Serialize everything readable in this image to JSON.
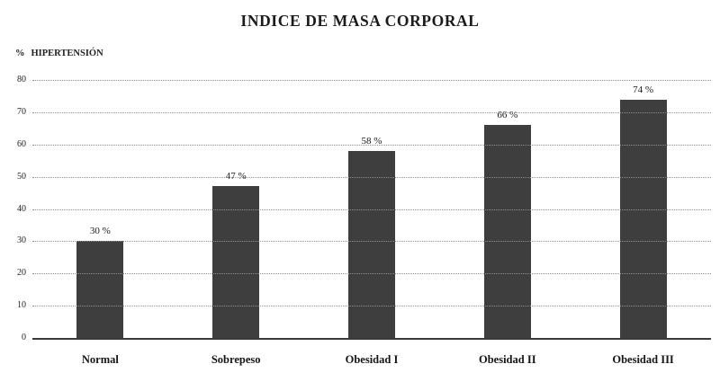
{
  "chart": {
    "y_axis_percent_sign": "%",
    "y_axis_label": "HIPERTENSIÓN"
  },
  "chart_data": {
    "type": "bar",
    "title": "INDICE DE MASA CORPORAL",
    "ylabel": "% HIPERTENSIÓN",
    "xlabel": "",
    "categories": [
      "Normal",
      "Sobrepeso",
      "Obesidad I",
      "Obesidad II",
      "Obesidad III"
    ],
    "values": [
      30,
      47,
      58,
      66,
      74
    ],
    "value_labels": [
      "30 %",
      "47 %",
      "58 %",
      "66 %",
      "74 %"
    ],
    "ylim": [
      0,
      80
    ],
    "yticks": [
      0,
      10,
      20,
      30,
      40,
      50,
      60,
      70,
      80
    ],
    "grid": "dotted-horizontal",
    "legend": "none",
    "bar_color": "#3e3e3e"
  }
}
